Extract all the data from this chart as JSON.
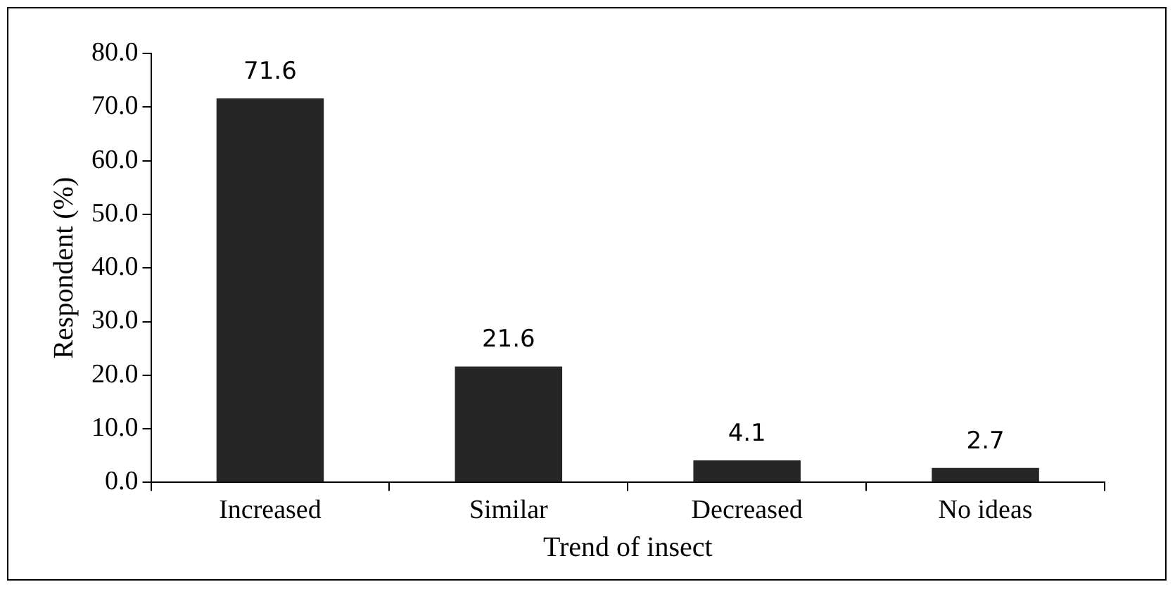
{
  "chart_data": {
    "type": "bar",
    "xlabel": "Trend of insect",
    "ylabel": "Respondent (%)",
    "categories": [
      "Increased",
      "Similar",
      "Decreased",
      "No ideas"
    ],
    "values": [
      71.6,
      21.6,
      4.1,
      2.7
    ],
    "color": "#262626",
    "ylim": [
      0,
      80
    ],
    "yticks": [
      {
        "value": 0,
        "label": "0.0"
      },
      {
        "value": 10,
        "label": "10.0"
      },
      {
        "value": 20,
        "label": "20.0"
      },
      {
        "value": 30,
        "label": "30.0"
      },
      {
        "value": 40,
        "label": "40.0"
      },
      {
        "value": 50,
        "label": "50.0"
      },
      {
        "value": 60,
        "label": "60.0"
      },
      {
        "value": 70,
        "label": "70.0"
      },
      {
        "value": 80,
        "label": "80.0"
      }
    ],
    "data_labels": true,
    "grid": false,
    "legend": false
  }
}
